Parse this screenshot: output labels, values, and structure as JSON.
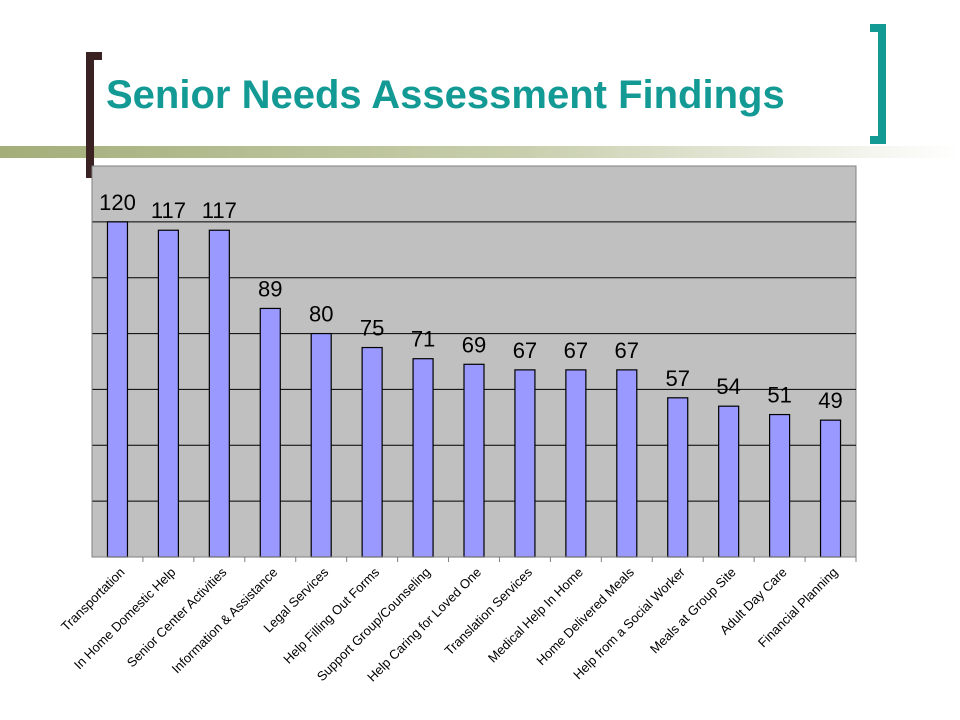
{
  "slide": {
    "title": "Senior Needs Assessment Findings",
    "colors": {
      "title": "#139a95",
      "left_bracket": "#3b2222",
      "right_bracket": "#139a95",
      "rule": "#a3ae7a"
    }
  },
  "chart_data": {
    "type": "bar",
    "title": "",
    "xlabel": "",
    "ylabel": "",
    "ylim": [
      0,
      140
    ],
    "grid": true,
    "legend": "none",
    "categories": [
      "Transportation",
      "In Home Domestic Help",
      "Senior Center Activities",
      "Information & Assistance",
      "Legal Services",
      "Help Filling Out Forms",
      "Support Group/Counseling",
      "Help Caring for Loved One",
      "Translation Services",
      "Medical Help In Home",
      "Home Delivered Meals",
      "Help from a Social Worker",
      "Meals at Group Site",
      "Adult Day Care",
      "Financial Planning"
    ],
    "values": [
      120,
      117,
      117,
      89,
      80,
      75,
      71,
      69,
      67,
      67,
      67,
      57,
      54,
      51,
      49
    ],
    "colors": {
      "bar": "#9999ff",
      "bar_stroke": "#000000",
      "plot_background": "#c0c0c0",
      "gridline": "#000000"
    }
  }
}
